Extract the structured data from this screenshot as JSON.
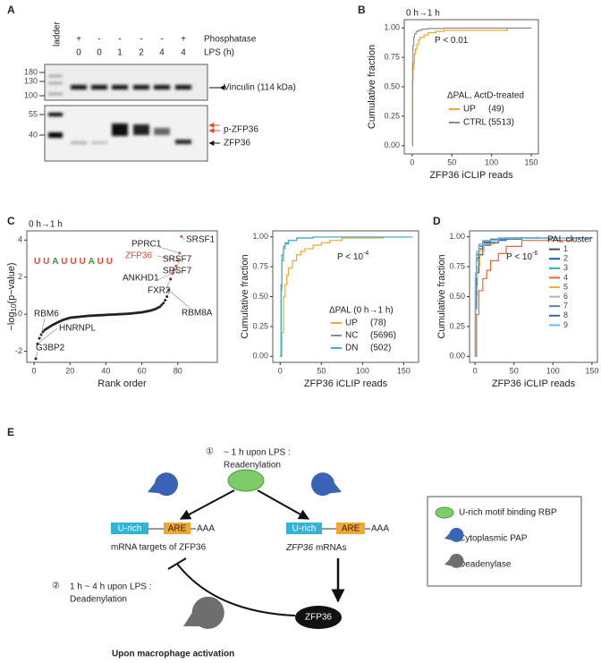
{
  "blot": {
    "panel": "A",
    "ladder": "ladder",
    "rows": [
      {
        "label": "Phosphatase",
        "values": [
          "+",
          "-",
          "-",
          "-",
          "-",
          "+"
        ]
      },
      {
        "label": "LPS (h)",
        "values": [
          0,
          0,
          1,
          2,
          4,
          4
        ]
      }
    ],
    "markers_upper": [
      180,
      130,
      100
    ],
    "markers_lower": [
      55,
      40
    ],
    "band_labels": [
      "Vinculin (114 kDa)",
      "p-ZFP36",
      "ZFP36"
    ]
  },
  "chart_data": [
    {
      "panel": "B",
      "type": "line",
      "step": true,
      "title": "0 h→1 h",
      "xlabel": "ZFP36 iCLIP reads",
      "ylabel": "Cumulative fraction",
      "xlim": [
        -10,
        159
      ],
      "xticks": [
        0,
        50,
        100,
        150
      ],
      "ylim": [
        -0.07,
        1.07
      ],
      "yticks": [
        {
          "value": 0,
          "label": "0.00"
        },
        {
          "value": 0.25,
          "label": "0.25"
        },
        {
          "value": 0.5,
          "label": "0.50"
        },
        {
          "value": 0.75,
          "label": "0.75"
        },
        {
          "value": 1,
          "label": "1.00"
        }
      ],
      "annotation": {
        "text": "P < 0.01"
      },
      "legend_title": "ΔPAL, ActD-treated",
      "series": [
        {
          "name": "UP",
          "legend_count": "(49)",
          "color": "#f0a630",
          "x": [
            0,
            0.5,
            1,
            2,
            3,
            4,
            6,
            8,
            10,
            15,
            20,
            30,
            40,
            120
          ],
          "values": [
            0,
            0.55,
            0.65,
            0.7,
            0.78,
            0.82,
            0.86,
            0.9,
            0.92,
            0.94,
            0.96,
            0.97,
            0.98,
            1.0
          ]
        },
        {
          "name": "CTRL",
          "legend_count": "(5513)",
          "color": "#8c8c8c",
          "x": [
            0,
            0.5,
            1,
            2,
            3,
            5,
            8,
            12,
            20,
            40,
            150
          ],
          "values": [
            0,
            0.7,
            0.85,
            0.92,
            0.95,
            0.97,
            0.98,
            0.99,
            0.995,
            0.999,
            1.0
          ]
        }
      ]
    },
    {
      "panel": "C",
      "type": "scatter",
      "title": "0 h→1 h",
      "xlabel": "Rank order",
      "ylabel": [
        "−log",
        "10",
        "(p−value)"
      ],
      "xlim": [
        -4,
        102
      ],
      "xticks": [
        0,
        20,
        40,
        60,
        80
      ],
      "ylim": [
        -2.6,
        4.5
      ],
      "yticks": [
        -2,
        0,
        2,
        4
      ],
      "color": "#222222",
      "highlight_color": "#e8452c",
      "highlight": [
        76,
        77,
        78,
        79,
        80,
        81
      ],
      "motif": "UUAUUUAUU",
      "annotations": [
        "SRSF1",
        "PPRC1",
        "ZFP36",
        "SRSF7",
        "SRSF7",
        "ANKHD1",
        "FXR2",
        "RBM8A",
        "RBM6",
        "HNRNPL",
        "G3BP2"
      ],
      "x": [
        1,
        2,
        3,
        4,
        5,
        6,
        7,
        8,
        9,
        10,
        11,
        12,
        13,
        14,
        15,
        16,
        17,
        18,
        19,
        20,
        21,
        22,
        23,
        24,
        25,
        26,
        27,
        28,
        29,
        30,
        31,
        32,
        33,
        34,
        35,
        36,
        37,
        38,
        39,
        40,
        41,
        42,
        43,
        44,
        45,
        46,
        47,
        48,
        49,
        50,
        51,
        52,
        53,
        54,
        55,
        56,
        57,
        58,
        59,
        60,
        61,
        62,
        63,
        64,
        65,
        66,
        67,
        68,
        69,
        70,
        71,
        72,
        73,
        74,
        75,
        76,
        77,
        78,
        79,
        80,
        81,
        82
      ],
      "values": [
        -2.4,
        -1.6,
        -1.3,
        -1.1,
        -0.95,
        -0.85,
        -0.78,
        -0.72,
        -0.66,
        -0.6,
        -0.55,
        -0.5,
        -0.45,
        -0.4,
        -0.36,
        -0.32,
        -0.28,
        -0.25,
        -0.22,
        -0.2,
        -0.18,
        -0.17,
        -0.16,
        -0.15,
        -0.14,
        -0.13,
        -0.12,
        -0.11,
        -0.1,
        -0.09,
        -0.08,
        -0.08,
        -0.07,
        -0.07,
        -0.06,
        -0.06,
        -0.05,
        -0.05,
        -0.04,
        -0.04,
        -0.03,
        -0.03,
        -0.02,
        -0.02,
        -0.01,
        -0.01,
        0,
        0,
        0.01,
        0.01,
        0.02,
        0.02,
        0.03,
        0.04,
        0.05,
        0.06,
        0.07,
        0.08,
        0.09,
        0.1,
        0.12,
        0.14,
        0.16,
        0.18,
        0.2,
        0.23,
        0.26,
        0.3,
        0.35,
        0.4,
        0.5,
        0.6,
        0.75,
        0.95,
        1.3,
        1.9,
        2.2,
        2.4,
        2.6,
        2.9,
        3.3,
        4.2
      ]
    },
    {
      "type": "line",
      "step": true,
      "xlabel": "ZFP36 iCLIP reads",
      "ylabel": "Cumulative fraction",
      "xlim": [
        -9,
        168
      ],
      "xticks": [
        0,
        50,
        100,
        150
      ],
      "ylim": [
        -0.05,
        1.05
      ],
      "yticks": [
        {
          "value": 0,
          "label": "0.00"
        },
        {
          "value": 0.25,
          "label": "0.25"
        },
        {
          "value": 0.5,
          "label": "0.50"
        },
        {
          "value": 0.75,
          "label": "0.75"
        },
        {
          "value": 1,
          "label": "1.00"
        }
      ],
      "annotation": {
        "text": "P < 10",
        "sup": "-4"
      },
      "legend_title": "ΔPAL (0 h→1 h)",
      "series": [
        {
          "name": "UP",
          "legend_count": "(78)",
          "color": "#f0a630",
          "x": [
            0,
            2,
            4,
            6,
            8,
            10,
            15,
            20,
            25,
            30,
            40,
            50,
            60,
            75,
            125
          ],
          "values": [
            0,
            0.2,
            0.5,
            0.6,
            0.68,
            0.74,
            0.8,
            0.85,
            0.88,
            0.9,
            0.93,
            0.95,
            0.97,
            0.99,
            1.0
          ]
        },
        {
          "name": "NC",
          "legend_count": "(5696)",
          "color": "#8c8c8c",
          "x": [
            0,
            1,
            2,
            4,
            6,
            10,
            20,
            40,
            160
          ],
          "values": [
            0,
            0.6,
            0.85,
            0.92,
            0.95,
            0.97,
            0.99,
            0.998,
            1
          ]
        },
        {
          "name": "DN",
          "legend_count": "(502)",
          "color": "#2fb4d8",
          "x": [
            0,
            1,
            2,
            4,
            6,
            10,
            20,
            40,
            160
          ],
          "values": [
            0,
            0.55,
            0.8,
            0.9,
            0.94,
            0.97,
            0.99,
            0.998,
            1
          ]
        }
      ]
    },
    {
      "panel": "D",
      "type": "line",
      "step": true,
      "xlabel": "ZFP36 iCLIP reads",
      "ylabel": "Cumulative fraction",
      "xlim": [
        -7,
        157
      ],
      "xticks": [
        0,
        50,
        100,
        150
      ],
      "ylim": [
        -0.05,
        1.05
      ],
      "yticks": [
        {
          "value": 0,
          "label": "0.00"
        },
        {
          "value": 0.25,
          "label": "0.25"
        },
        {
          "value": 0.5,
          "label": "0.50"
        },
        {
          "value": 0.75,
          "label": "0.75"
        },
        {
          "value": 1,
          "label": "1.00"
        }
      ],
      "annotation": {
        "text": "P < 10",
        "sup": "-6"
      },
      "legend_title": "PAL cluster",
      "series": [
        {
          "name": "1",
          "color": "#4d4d4d",
          "x": [
            0,
            0.5,
            2,
            5,
            10,
            20,
            50,
            100
          ],
          "values": [
            0,
            0.6,
            0.8,
            0.9,
            0.95,
            0.98,
            0.99,
            1
          ]
        },
        {
          "name": "2",
          "color": "#1f4fd6",
          "x": [
            0,
            0.5,
            2,
            5,
            10,
            20,
            40,
            80
          ],
          "values": [
            0,
            0.4,
            0.7,
            0.85,
            0.93,
            0.97,
            0.99,
            1
          ]
        },
        {
          "name": "3",
          "color": "#2ab0a8",
          "x": [
            0,
            0.5,
            2,
            5,
            10,
            25,
            60
          ],
          "values": [
            0,
            0.55,
            0.8,
            0.9,
            0.95,
            0.98,
            1
          ]
        },
        {
          "name": "4",
          "color": "#e8643a",
          "x": [
            0,
            2,
            5,
            10,
            15,
            20,
            30,
            40,
            60,
            125
          ],
          "values": [
            0,
            0.35,
            0.55,
            0.65,
            0.72,
            0.8,
            0.86,
            0.92,
            0.97,
            1
          ]
        },
        {
          "name": "5",
          "color": "#f2b134",
          "x": [
            0,
            1,
            3,
            6,
            12,
            25,
            50
          ],
          "values": [
            0,
            0.5,
            0.75,
            0.88,
            0.94,
            0.98,
            1
          ]
        },
        {
          "name": "6",
          "color": "#b0b0b0",
          "x": [
            0,
            0.5,
            2,
            5,
            10,
            30,
            150
          ],
          "values": [
            0,
            0.7,
            0.88,
            0.94,
            0.97,
            0.99,
            1
          ]
        },
        {
          "name": "7",
          "color": "#5a83a6",
          "x": [
            0,
            0.5,
            2,
            5,
            10,
            20,
            60
          ],
          "values": [
            0,
            0.65,
            0.85,
            0.92,
            0.96,
            0.98,
            1
          ]
        },
        {
          "name": "8",
          "color": "#3a62b5",
          "x": [
            0,
            0.5,
            2,
            5,
            10,
            30,
            100
          ],
          "values": [
            0,
            0.6,
            0.82,
            0.9,
            0.95,
            0.99,
            1
          ]
        },
        {
          "name": "9",
          "color": "#5ec3e6",
          "x": [
            0,
            0.5,
            2,
            5,
            10,
            30,
            150
          ],
          "values": [
            0,
            0.66,
            0.86,
            0.93,
            0.97,
            0.99,
            1
          ]
        }
      ]
    }
  ],
  "diagram": {
    "panel": "E",
    "step1": {
      "num": "①",
      "text": "~ 1 h upon LPS :",
      "sub": "Readenylation"
    },
    "step2": {
      "num": "②",
      "text": "1 h ~ 4 h upon LPS :",
      "sub": "Deadenylation"
    },
    "left": {
      "urich": "U-rich",
      "are": "ARE",
      "tail": "AAA",
      "caption": "mRNA targets of ZFP36"
    },
    "right": {
      "urich": "U-rich",
      "are": "ARE",
      "tail": "AAA",
      "caption_italic": "ZFP36",
      "caption_rest": "mRNAs"
    },
    "protein": "ZFP36",
    "legend": [
      "U-rich motif binding RBP",
      "Cytoplasmic PAP",
      "Deadenylase"
    ],
    "footer": "Upon macrophage activation"
  }
}
